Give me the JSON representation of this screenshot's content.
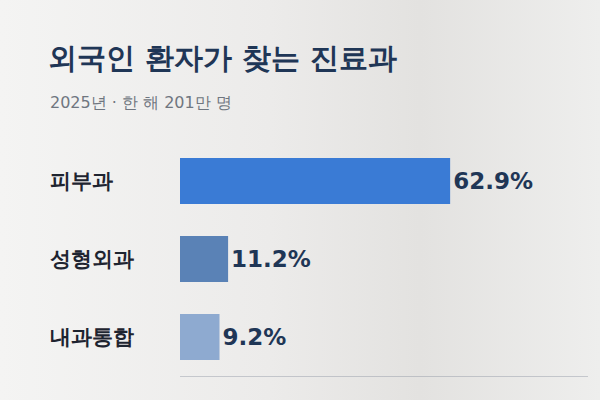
{
  "chart_data": {
    "type": "bar",
    "title": "외국인 환자가 찾는 진료과",
    "subtitle": "2025년 · 한 해 201만 명",
    "orientation": "horizontal",
    "categories": [
      "피부과",
      "성형외과",
      "내과통합"
    ],
    "values": [
      62.9,
      11.2,
      9.2
    ],
    "value_labels": [
      "62.9%",
      "11.2%",
      "9.2%"
    ],
    "colors": [
      "#3a7bd5",
      "#5a82b6",
      "#8eaad0"
    ],
    "xlim": [
      0,
      95
    ],
    "xticks": [],
    "grid": false,
    "data_labels": true,
    "tick_labels": "y"
  }
}
